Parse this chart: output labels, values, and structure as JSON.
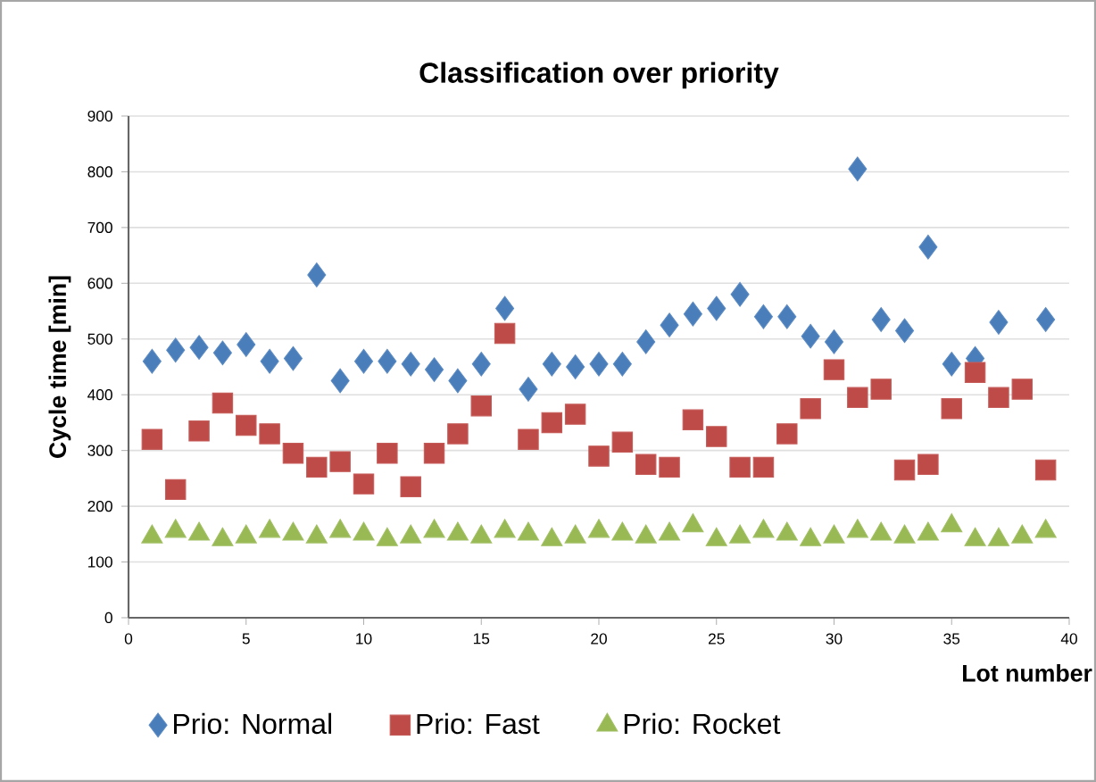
{
  "chart_data": {
    "type": "scatter",
    "title": "Classification over priority",
    "xlabel": "Lot number",
    "ylabel": "Cycle time [min]",
    "x": [
      1,
      2,
      3,
      4,
      5,
      6,
      7,
      8,
      9,
      10,
      11,
      12,
      13,
      14,
      15,
      16,
      17,
      18,
      19,
      20,
      21,
      22,
      23,
      24,
      25,
      26,
      27,
      28,
      29,
      30,
      31,
      32,
      33,
      34,
      35,
      36,
      37,
      38,
      39
    ],
    "series": [
      {
        "name": "Prio: Normal",
        "color": "#4a7ebb",
        "marker": "diamond",
        "values": [
          460,
          480,
          485,
          475,
          490,
          460,
          465,
          615,
          425,
          460,
          460,
          455,
          445,
          425,
          455,
          555,
          410,
          455,
          450,
          455,
          455,
          495,
          525,
          545,
          555,
          580,
          540,
          540,
          505,
          495,
          805,
          535,
          515,
          665,
          455,
          465,
          530,
          null,
          535
        ]
      },
      {
        "name": "Prio: Fast",
        "color": "#be4b48",
        "marker": "square",
        "values": [
          320,
          230,
          335,
          385,
          345,
          330,
          295,
          270,
          280,
          240,
          295,
          235,
          295,
          330,
          380,
          510,
          320,
          350,
          365,
          290,
          315,
          275,
          270,
          355,
          325,
          270,
          270,
          330,
          375,
          445,
          395,
          410,
          265,
          275,
          375,
          440,
          395,
          410,
          265
        ]
      },
      {
        "name": "Prio: Rocket",
        "color": "#98b954",
        "marker": "triangle",
        "values": [
          145,
          155,
          150,
          140,
          145,
          155,
          150,
          145,
          155,
          150,
          140,
          145,
          155,
          150,
          145,
          155,
          150,
          140,
          145,
          155,
          150,
          145,
          150,
          165,
          140,
          145,
          155,
          150,
          140,
          145,
          155,
          150,
          145,
          150,
          165,
          140,
          140,
          145,
          155
        ]
      }
    ],
    "xlim": [
      0,
      40
    ],
    "xticks": [
      0,
      5,
      10,
      15,
      20,
      25,
      30,
      35,
      40
    ],
    "ylim": [
      0,
      900
    ],
    "yticks": [
      0,
      100,
      200,
      300,
      400,
      500,
      600,
      700,
      800,
      900
    ],
    "grid": "y",
    "legend": "bottom"
  }
}
